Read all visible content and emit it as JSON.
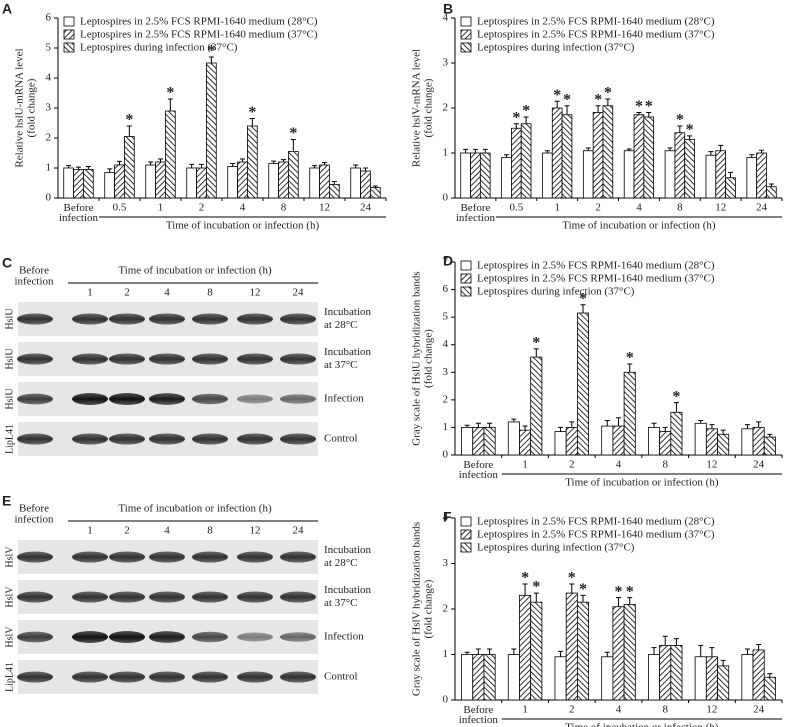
{
  "chart_data": [
    {
      "type": "bar",
      "panel": "A",
      "ylabel": [
        "Relative hslU-mRNA level",
        "(fold change)"
      ],
      "xlabel": "Time of incubation or infection (h)",
      "categories": [
        "Before infection",
        "0.5",
        "1",
        "2",
        "4",
        "8",
        "12",
        "24"
      ],
      "ylim": [
        0,
        6
      ],
      "yticks": [
        0,
        1,
        2,
        3,
        4,
        5,
        6
      ],
      "legend": "top-left",
      "series": [
        {
          "name": "Leptospires in 2.5% FCS RPMI-1640 medium (28°C)",
          "color": "#000000",
          "pattern": "none",
          "values": [
            1.0,
            0.85,
            1.1,
            1.0,
            1.05,
            1.15,
            1.0,
            1.0
          ],
          "errors": [
            0.08,
            0.12,
            0.1,
            0.12,
            0.1,
            0.08,
            0.08,
            0.1
          ],
          "significance": [
            null,
            null,
            null,
            null,
            null,
            null,
            null,
            null
          ]
        },
        {
          "name": "Leptospires in 2.5% FCS RPMI-1640 medium (37°C)",
          "color": "#000000",
          "pattern": "forward",
          "values": [
            0.95,
            1.1,
            1.2,
            1.0,
            1.2,
            1.2,
            1.1,
            0.9
          ],
          "errors": [
            0.08,
            0.12,
            0.1,
            0.12,
            0.1,
            0.08,
            0.08,
            0.1
          ],
          "significance": [
            null,
            null,
            null,
            null,
            null,
            null,
            null,
            null
          ]
        },
        {
          "name": "Leptospires during infection (37°C)",
          "color": "#000000",
          "pattern": "backward",
          "values": [
            0.95,
            2.05,
            2.9,
            4.5,
            2.4,
            1.55,
            0.45,
            0.35
          ],
          "errors": [
            0.1,
            0.35,
            0.4,
            0.2,
            0.25,
            0.4,
            0.1,
            0.05
          ],
          "significance": [
            null,
            "*",
            "*",
            "*",
            "*",
            "*",
            null,
            null
          ]
        }
      ]
    },
    {
      "type": "bar",
      "panel": "B",
      "ylabel": [
        "Relative hslV-mRNA level",
        "(fold change)"
      ],
      "xlabel": "Time of incubation or infection (h)",
      "categories": [
        "Before infection",
        "0.5",
        "1",
        "2",
        "4",
        "8",
        "12",
        "24"
      ],
      "ylim": [
        0,
        4
      ],
      "yticks": [
        0,
        1,
        2,
        3,
        4
      ],
      "legend": "top-left",
      "series": [
        {
          "name": "Leptospires in 2.5% FCS RPMI-1640 medium (28°C)",
          "color": "#000000",
          "pattern": "none",
          "values": [
            1.0,
            0.9,
            1.0,
            1.05,
            1.05,
            1.05,
            0.95,
            0.9
          ],
          "errors": [
            0.08,
            0.06,
            0.05,
            0.06,
            0.04,
            0.06,
            0.08,
            0.06
          ],
          "significance": [
            null,
            null,
            null,
            null,
            null,
            null,
            null,
            null
          ]
        },
        {
          "name": "Leptospires in 2.5% FCS RPMI-1640 medium (37°C)",
          "color": "#000000",
          "pattern": "forward",
          "values": [
            1.0,
            1.55,
            2.0,
            1.9,
            1.85,
            1.45,
            1.05,
            1.0
          ],
          "errors": [
            0.08,
            0.1,
            0.15,
            0.15,
            0.05,
            0.15,
            0.12,
            0.06
          ],
          "significance": [
            null,
            "*",
            "*",
            "*",
            "*",
            "*",
            null,
            null
          ]
        },
        {
          "name": "Leptospires during infection (37°C)",
          "color": "#000000",
          "pattern": "backward",
          "values": [
            1.0,
            1.65,
            1.85,
            2.05,
            1.8,
            1.3,
            0.45,
            0.25
          ],
          "errors": [
            0.08,
            0.15,
            0.2,
            0.15,
            0.1,
            0.08,
            0.12,
            0.06
          ],
          "significance": [
            null,
            "*",
            "*",
            "*",
            "*",
            "*",
            null,
            null
          ]
        }
      ]
    },
    {
      "type": "bar",
      "panel": "D",
      "ylabel": [
        "Gray scale of HslU hybridization bands",
        "(fold change)"
      ],
      "xlabel": "Time of incubation or infection (h)",
      "categories": [
        "Before infection",
        "1",
        "2",
        "4",
        "8",
        "12",
        "24"
      ],
      "ylim": [
        0,
        7
      ],
      "yticks": [
        0,
        1,
        2,
        3,
        4,
        5,
        6,
        7
      ],
      "legend": "top-left",
      "series": [
        {
          "name": "Leptospires in 2.5% FCS RPMI-1640 medium (28°C)",
          "color": "#000000",
          "pattern": "none",
          "values": [
            1.0,
            1.2,
            0.85,
            1.05,
            1.0,
            1.15,
            0.95
          ],
          "errors": [
            0.08,
            0.1,
            0.15,
            0.2,
            0.15,
            0.1,
            0.15
          ],
          "significance": [
            null,
            null,
            null,
            null,
            null,
            null,
            null
          ]
        },
        {
          "name": "Leptospires in 2.5% FCS RPMI-1640 medium (37°C)",
          "color": "#000000",
          "pattern": "forward",
          "values": [
            1.0,
            0.9,
            1.0,
            1.05,
            0.85,
            0.95,
            1.0
          ],
          "errors": [
            0.15,
            0.15,
            0.2,
            0.3,
            0.15,
            0.15,
            0.2
          ],
          "significance": [
            null,
            null,
            null,
            null,
            null,
            null,
            null
          ]
        },
        {
          "name": "Leptospires during infection (37°C)",
          "color": "#000000",
          "pattern": "backward",
          "values": [
            1.0,
            3.55,
            5.15,
            3.0,
            1.55,
            0.75,
            0.65
          ],
          "errors": [
            0.15,
            0.3,
            0.3,
            0.3,
            0.35,
            0.15,
            0.1
          ],
          "significance": [
            null,
            "*",
            "*",
            "*",
            "*",
            null,
            null
          ]
        }
      ]
    },
    {
      "type": "bar",
      "panel": "F",
      "ylabel": [
        "Gray scale of HslV hybridization bands",
        "(fold change)"
      ],
      "xlabel": "Time of incubation or infection (h)",
      "categories": [
        "Before infection",
        "1",
        "2",
        "4",
        "8",
        "12",
        "24"
      ],
      "ylim": [
        0,
        4
      ],
      "yticks": [
        0,
        1,
        2,
        3,
        4
      ],
      "legend": "top-left",
      "series": [
        {
          "name": "Leptospires in 2.5% FCS RPMI-1640 medium (28°C)",
          "color": "#000000",
          "pattern": "none",
          "values": [
            1.0,
            1.0,
            0.95,
            0.95,
            1.0,
            0.95,
            1.0
          ],
          "errors": [
            0.05,
            0.12,
            0.12,
            0.1,
            0.15,
            0.25,
            0.12
          ],
          "significance": [
            null,
            null,
            null,
            null,
            null,
            null,
            null
          ]
        },
        {
          "name": "Leptospires in 2.5% FCS RPMI-1640 medium (37°C)",
          "color": "#000000",
          "pattern": "forward",
          "values": [
            1.0,
            2.3,
            2.35,
            2.05,
            1.2,
            0.95,
            1.1
          ],
          "errors": [
            0.12,
            0.25,
            0.2,
            0.2,
            0.2,
            0.2,
            0.12
          ],
          "significance": [
            null,
            "*",
            "*",
            "*",
            null,
            null,
            null
          ]
        },
        {
          "name": "Leptospires during infection (37°C)",
          "color": "#000000",
          "pattern": "backward",
          "values": [
            1.0,
            2.15,
            2.15,
            2.1,
            1.2,
            0.75,
            0.5
          ],
          "errors": [
            0.12,
            0.2,
            0.15,
            0.15,
            0.15,
            0.12,
            0.08
          ],
          "significance": [
            null,
            "*",
            "*",
            "*",
            null,
            null,
            null
          ]
        }
      ]
    }
  ],
  "blots": [
    {
      "panel": "C",
      "before": "Before infection",
      "header": "Time of incubation or infection (h)",
      "lanes": [
        "1",
        "2",
        "4",
        "8",
        "12",
        "24"
      ],
      "rows": [
        {
          "protein": "HslU",
          "condition": [
            "Incubation",
            "at 28°C"
          ]
        },
        {
          "protein": "HslU",
          "condition": [
            "Incubation",
            "at 37°C"
          ]
        },
        {
          "protein": "HslU",
          "condition": [
            "Infection"
          ]
        },
        {
          "protein": "LipL41",
          "condition": [
            "Control"
          ]
        }
      ]
    },
    {
      "panel": "E",
      "before": "Before infection",
      "header": "Time of incubation or infection (h)",
      "lanes": [
        "1",
        "2",
        "4",
        "8",
        "12",
        "24"
      ],
      "rows": [
        {
          "protein": "HslV",
          "condition": [
            "Incubation",
            "at 28°C"
          ]
        },
        {
          "protein": "HslV",
          "condition": [
            "Incubation",
            "at 37°C"
          ]
        },
        {
          "protein": "HslV",
          "condition": [
            "Infection"
          ]
        },
        {
          "protein": "LipL41",
          "condition": [
            "Control"
          ]
        }
      ]
    }
  ]
}
